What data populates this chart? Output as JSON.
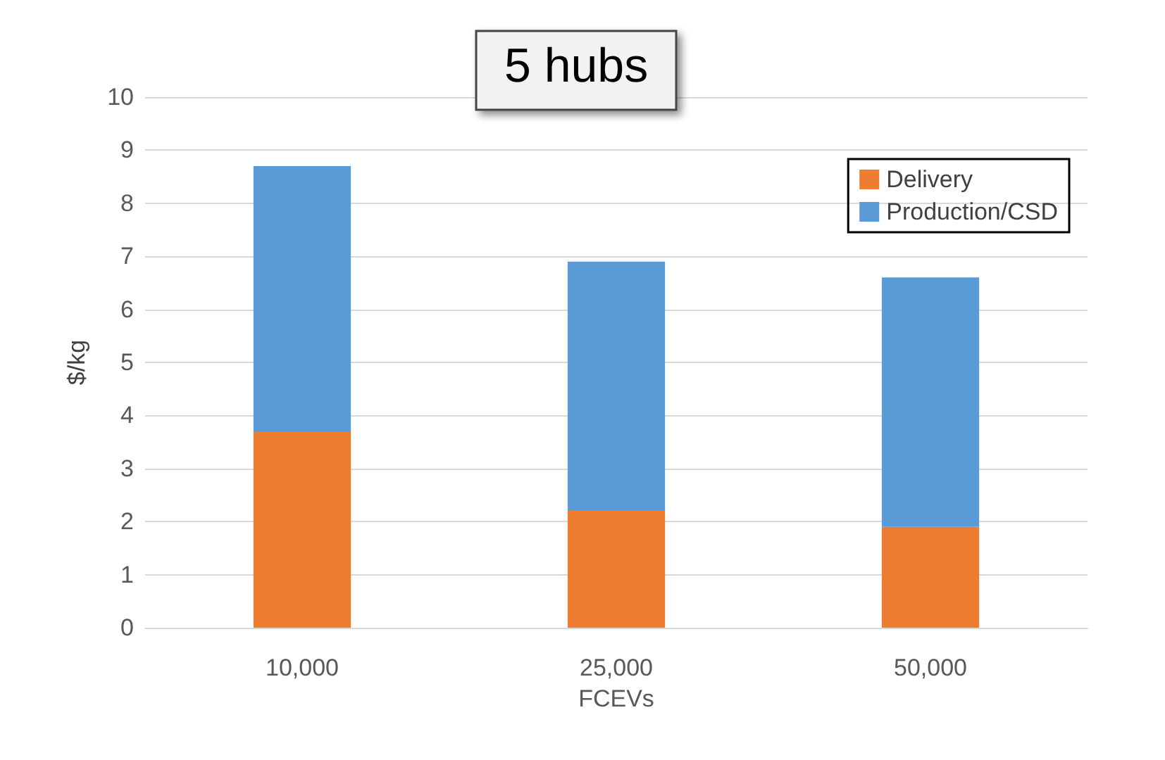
{
  "chart_data": {
    "type": "bar",
    "title": "5 hubs",
    "xlabel": "FCEVs",
    "ylabel": "$/kg",
    "categories": [
      "10,000",
      "25,000",
      "50,000"
    ],
    "stacked": true,
    "series": [
      {
        "name": "Delivery",
        "color": "#ed7d31",
        "values": [
          3.7,
          2.2,
          1.9
        ]
      },
      {
        "name": "Production/CSD",
        "color": "#5b9bd5",
        "values": [
          5.0,
          4.7,
          4.7
        ]
      }
    ],
    "ylim": [
      0,
      10
    ],
    "yticks": [
      0,
      1,
      2,
      3,
      4,
      5,
      6,
      7,
      8,
      9,
      10
    ],
    "grid": "y",
    "legend": "top right"
  }
}
